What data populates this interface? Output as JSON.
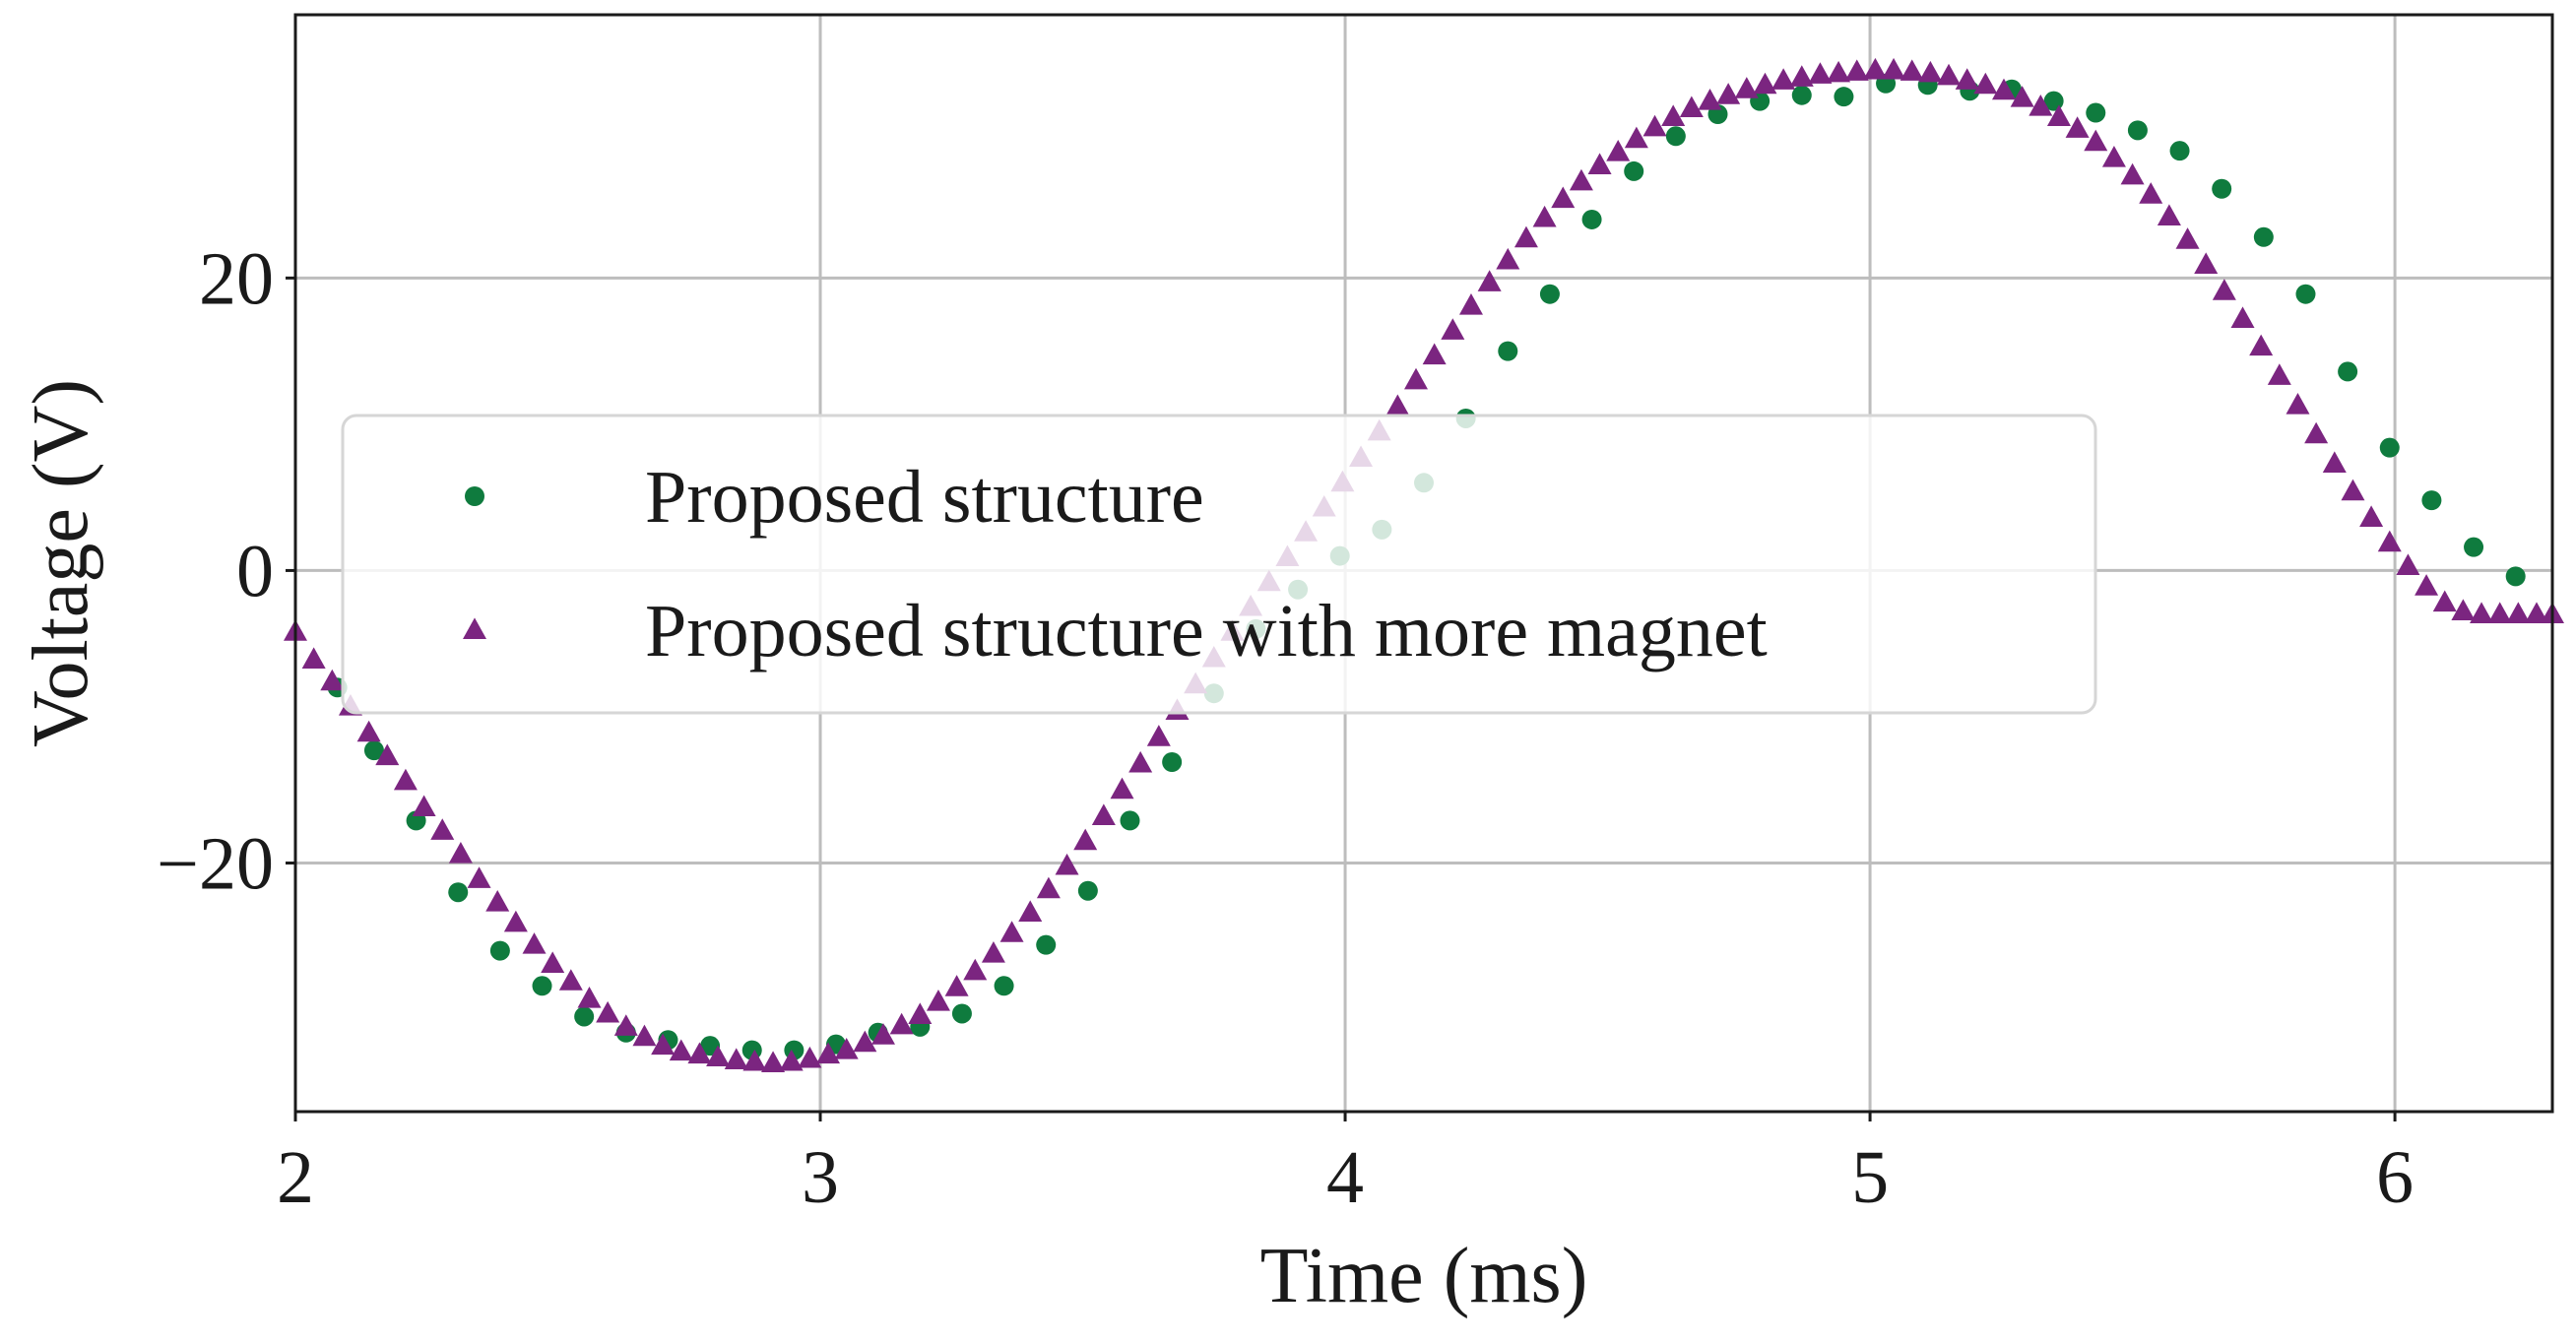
{
  "chart_data": {
    "type": "scatter",
    "title": "",
    "xlabel": "Time (ms)",
    "ylabel": "Voltage (V)",
    "xlim": [
      2.0,
      6.3
    ],
    "ylim": [
      -37,
      38
    ],
    "xticks": [
      2,
      3,
      4,
      5,
      6
    ],
    "yticks": [
      -20,
      0,
      20
    ],
    "xtick_labels": [
      "2",
      "3",
      "4",
      "5",
      "6"
    ],
    "ytick_labels": [
      "−20",
      "0",
      "20"
    ],
    "grid": true,
    "legend_placement": "center-left",
    "series": [
      {
        "name": "Proposed structure",
        "marker": "circle",
        "color": "#0f7b3e",
        "x": [
          2.08,
          2.15,
          2.23,
          2.31,
          2.39,
          2.47,
          2.55,
          2.63,
          2.71,
          2.79,
          2.87,
          2.95,
          3.03,
          3.11,
          3.19,
          3.27,
          3.35,
          3.43,
          3.51,
          3.59,
          3.67,
          3.75,
          3.83,
          3.91,
          3.99,
          4.07,
          4.15,
          4.23,
          4.31,
          4.39,
          4.47,
          4.55,
          4.63,
          4.71,
          4.79,
          4.87,
          4.95,
          5.03,
          5.11,
          5.19,
          5.27,
          5.35,
          5.43,
          5.51,
          5.59,
          5.67,
          5.75,
          5.83,
          5.91,
          5.99,
          6.07,
          6.15,
          6.23
        ],
        "y": [
          -8.0,
          -12.3,
          -17.1,
          -22.0,
          -26.0,
          -28.4,
          -30.5,
          -31.6,
          -32.1,
          -32.5,
          -32.8,
          -32.8,
          -32.4,
          -31.6,
          -31.2,
          -30.3,
          -28.4,
          -25.6,
          -21.9,
          -17.1,
          -13.1,
          -8.4,
          -4.0,
          -1.3,
          1.0,
          2.8,
          6.0,
          10.4,
          15.0,
          18.9,
          24.0,
          27.3,
          29.7,
          31.2,
          32.1,
          32.5,
          32.4,
          33.3,
          33.2,
          32.8,
          32.9,
          32.1,
          31.3,
          30.1,
          28.7,
          26.1,
          22.8,
          18.9,
          13.6,
          8.4,
          4.8,
          1.6,
          -0.4
        ]
      },
      {
        "name": "Proposed structure with more magnet",
        "marker": "triangle",
        "color": "#7b2580",
        "x": [
          2.0,
          2.035,
          2.07,
          2.105,
          2.14,
          2.175,
          2.21,
          2.245,
          2.28,
          2.315,
          2.35,
          2.385,
          2.42,
          2.455,
          2.49,
          2.525,
          2.56,
          2.595,
          2.63,
          2.665,
          2.7,
          2.735,
          2.77,
          2.805,
          2.84,
          2.875,
          2.91,
          2.945,
          2.98,
          3.015,
          3.05,
          3.085,
          3.12,
          3.155,
          3.19,
          3.225,
          3.26,
          3.295,
          3.33,
          3.365,
          3.4,
          3.435,
          3.47,
          3.505,
          3.54,
          3.575,
          3.61,
          3.645,
          3.68,
          3.715,
          3.75,
          3.785,
          3.82,
          3.855,
          3.89,
          3.925,
          3.96,
          3.995,
          4.03,
          4.065,
          4.1,
          4.135,
          4.17,
          4.205,
          4.24,
          4.275,
          4.31,
          4.345,
          4.38,
          4.415,
          4.45,
          4.485,
          4.52,
          4.555,
          4.59,
          4.625,
          4.66,
          4.695,
          4.73,
          4.765,
          4.8,
          4.835,
          4.87,
          4.905,
          4.94,
          4.975,
          5.01,
          5.045,
          5.08,
          5.115,
          5.15,
          5.185,
          5.22,
          5.255,
          5.29,
          5.325,
          5.36,
          5.395,
          5.43,
          5.465,
          5.5,
          5.535,
          5.57,
          5.605,
          5.64,
          5.675,
          5.71,
          5.745,
          5.78,
          5.815,
          5.85,
          5.885,
          5.92,
          5.955,
          5.99,
          6.025,
          6.06,
          6.095,
          6.13,
          6.165,
          6.2,
          6.235,
          6.27,
          6.3
        ],
        "y": [
          -4.2,
          -6.1,
          -7.6,
          -9.3,
          -11.1,
          -12.7,
          -14.4,
          -16.2,
          -17.8,
          -19.4,
          -21.1,
          -22.7,
          -24.1,
          -25.6,
          -26.9,
          -28.1,
          -29.3,
          -30.3,
          -31.2,
          -31.9,
          -32.5,
          -32.9,
          -33.1,
          -33.3,
          -33.5,
          -33.6,
          -33.7,
          -33.6,
          -33.4,
          -33.1,
          -32.8,
          -32.3,
          -31.8,
          -31.1,
          -30.4,
          -29.5,
          -28.5,
          -27.4,
          -26.2,
          -24.8,
          -23.4,
          -21.8,
          -20.2,
          -18.5,
          -16.8,
          -15.0,
          -13.2,
          -11.4,
          -9.6,
          -7.8,
          -6.0,
          -4.2,
          -2.5,
          -0.8,
          0.9,
          2.6,
          4.3,
          6.0,
          7.7,
          9.5,
          11.2,
          13.0,
          14.7,
          16.4,
          18.1,
          19.7,
          21.2,
          22.7,
          24.1,
          25.4,
          26.6,
          27.7,
          28.6,
          29.5,
          30.3,
          31.0,
          31.6,
          32.1,
          32.5,
          32.9,
          33.2,
          33.5,
          33.7,
          33.9,
          34.0,
          34.1,
          34.2,
          34.2,
          34.1,
          34.0,
          33.8,
          33.5,
          33.2,
          32.8,
          32.3,
          31.7,
          31.0,
          30.2,
          29.3,
          28.2,
          27.0,
          25.7,
          24.2,
          22.6,
          20.9,
          19.1,
          17.2,
          15.3,
          13.3,
          11.3,
          9.3,
          7.3,
          5.4,
          3.6,
          1.9,
          0.3,
          -1.1,
          -2.2,
          -2.8,
          -3.0,
          -3.0,
          -3.0,
          -3.0,
          -3.0
        ]
      }
    ]
  }
}
